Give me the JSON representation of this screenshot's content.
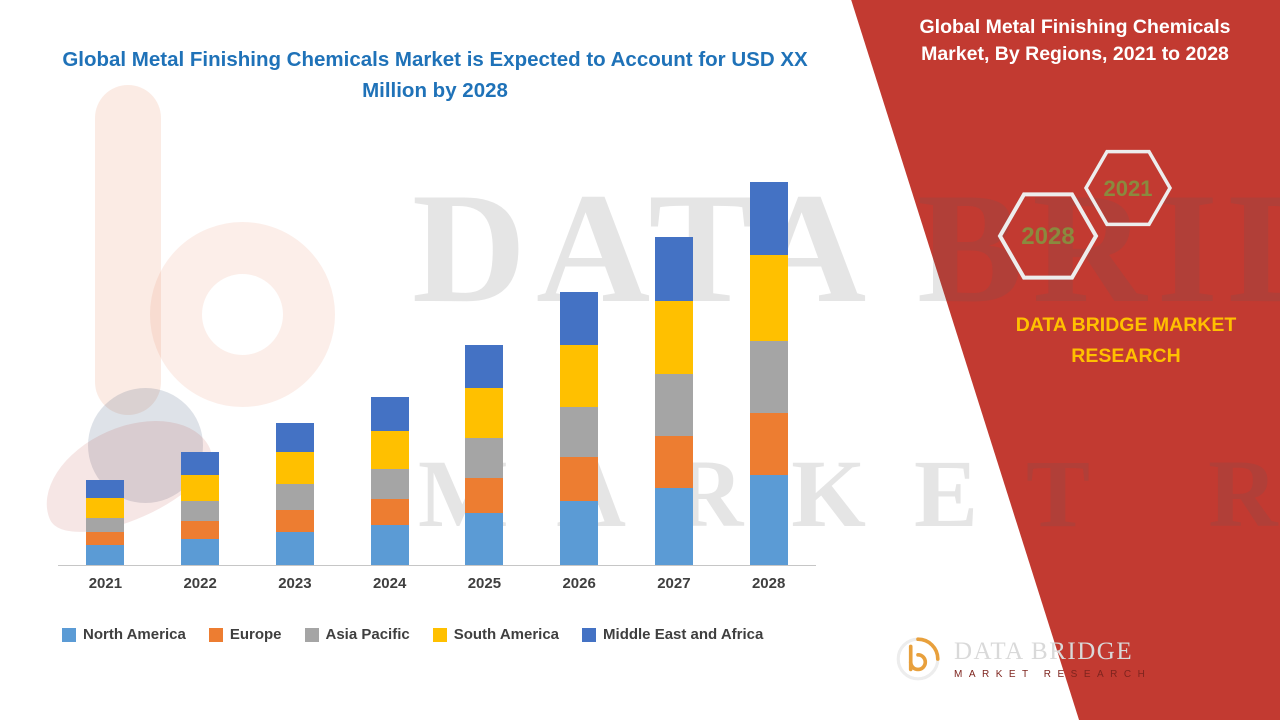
{
  "colors": {
    "panel_red": "#C23A31",
    "title_blue": "#1F72B8",
    "brand_gold": "#FFC000",
    "hex_label_olive": "#8A8A3E"
  },
  "watermark": {
    "line1": "DATA BRIDGE",
    "line2": "MARKET RESEARCH"
  },
  "right_panel": {
    "title": "Global Metal Finishing Chemicals Market, By Regions, 2021 to 2028",
    "hex_2028_label": "2028",
    "hex_2021_label": "2021",
    "brand_text": "DATA BRIDGE MARKET RESEARCH",
    "logo": {
      "name": "DATA BRIDGE",
      "tagline": "MARKET RESEARCH"
    }
  },
  "chart_data": {
    "type": "bar",
    "stacked": true,
    "title": "Global Metal Finishing Chemicals Market is Expected to Account for USD XX Million by 2028",
    "xlabel": "",
    "ylabel": "",
    "units_note": "y-axis unlabeled in source (USD XX Million); values are estimated relative units",
    "categories": [
      "2021",
      "2022",
      "2023",
      "2024",
      "2025",
      "2026",
      "2027",
      "2028"
    ],
    "series": [
      {
        "name": "North America",
        "color": "#5B9BD5",
        "values": [
          20,
          26,
          33,
          40,
          52,
          64,
          77,
          90
        ]
      },
      {
        "name": "Europe",
        "color": "#ED7D31",
        "values": [
          13,
          18,
          22,
          26,
          35,
          44,
          52,
          62
        ]
      },
      {
        "name": "Asia Pacific",
        "color": "#A5A5A5",
        "values": [
          14,
          20,
          26,
          30,
          40,
          50,
          62,
          72
        ]
      },
      {
        "name": "South America",
        "color": "#FFC000",
        "values": [
          20,
          26,
          32,
          38,
          50,
          62,
          73,
          86
        ]
      },
      {
        "name": "Middle East and Africa",
        "color": "#4472C4",
        "values": [
          18,
          23,
          29,
          34,
          43,
          53,
          64,
          73
        ]
      }
    ],
    "ylim": [
      0,
      400
    ],
    "grid": false,
    "y_axis_visible": false,
    "legend_position": "bottom"
  }
}
